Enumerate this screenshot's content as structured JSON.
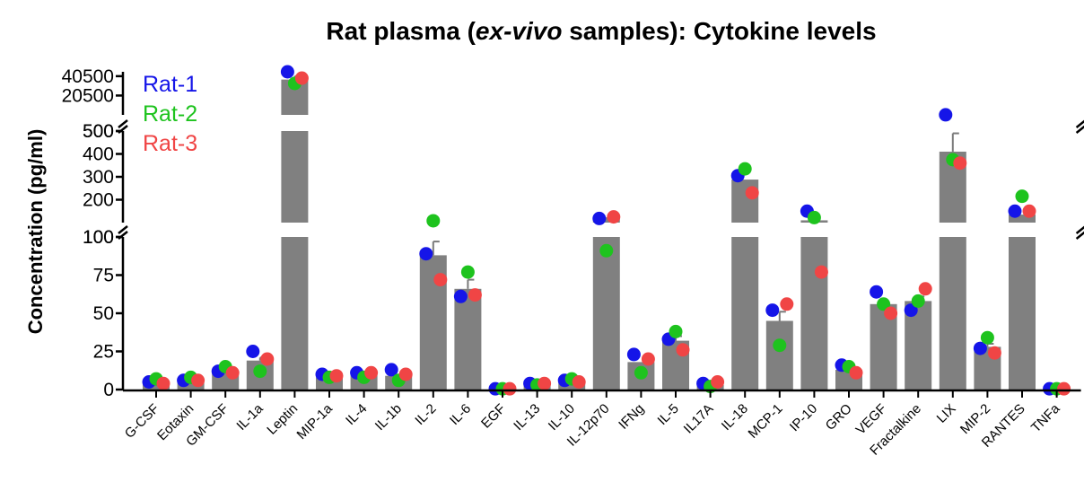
{
  "chart_data": {
    "type": "bar",
    "title_parts": [
      "Rat plasma (",
      "ex-vivo",
      " samples): Cytokine levels"
    ],
    "ylabel": "Concentration (pg/ml)",
    "xlabel": "",
    "categories": [
      "G-CSF",
      "Eotaxin",
      "GM-CSF",
      "IL-1a",
      "Leptin",
      "MIP-1a",
      "IL-4",
      "IL-1b",
      "IL-2",
      "IL-6",
      "EGF",
      "IL-13",
      "IL-10",
      "IL-12p70",
      "IFNg",
      "IL-5",
      "IL17A",
      "IL-18",
      "MCP-1",
      "IP-10",
      "GRO",
      "VEGF",
      "Fractalkine",
      "LIX",
      "MIP-2",
      "RANTES",
      "TNFa"
    ],
    "means": [
      5,
      6,
      11,
      19,
      37000,
      8,
      10,
      9,
      88,
      66,
      0.5,
      3,
      5,
      123,
      18,
      32,
      3,
      288,
      45,
      110,
      13,
      56,
      58,
      410,
      28,
      135,
      0.5
    ],
    "errors": [
      0,
      0,
      1,
      2,
      3500,
      0,
      0,
      0,
      9,
      6,
      0,
      0,
      0,
      0,
      0,
      3,
      0,
      0,
      6,
      0,
      0,
      0,
      3,
      80,
      2,
      0,
      0
    ],
    "series": [
      {
        "name": "Rat-1",
        "color": "#1515e8",
        "values": [
          5,
          6,
          12,
          25,
          48000,
          10,
          11,
          13,
          89,
          61,
          0.5,
          4,
          6,
          118,
          23,
          33,
          4,
          305,
          52,
          150,
          16,
          64,
          52,
          570,
          27,
          150,
          0.5
        ]
      },
      {
        "name": "Rat-2",
        "color": "#1ec31e",
        "values": [
          7,
          8,
          15,
          12,
          33000,
          8,
          8,
          6,
          108,
          77,
          0.5,
          3,
          7,
          91,
          11,
          38,
          2,
          335,
          29,
          122,
          15,
          56,
          58,
          375,
          34,
          215,
          0.5
        ]
      },
      {
        "name": "Rat-3",
        "color": "#f04545",
        "values": [
          4,
          6,
          11,
          20,
          38500,
          9,
          11,
          10,
          72,
          62,
          0.5,
          4,
          5,
          125,
          20,
          26,
          5,
          230,
          56,
          77,
          11,
          50,
          66,
          360,
          24,
          150,
          0.5
        ]
      }
    ],
    "segments": [
      {
        "range": [
          0,
          100
        ],
        "ticks": [
          0,
          25,
          50,
          75,
          100
        ]
      },
      {
        "range": [
          100,
          500
        ],
        "ticks": [
          100,
          200,
          300,
          400,
          500
        ]
      },
      {
        "range": [
          500,
          45000
        ],
        "ticks": [
          500,
          20500,
          40500
        ]
      }
    ],
    "tick_labels": {
      "0": "0",
      "25": "25",
      "50": "50",
      "75": "75",
      "100": "100",
      "200": "200",
      "300": "300",
      "400": "400",
      "500": "500",
      "20500": "20500",
      "40500": "40500"
    },
    "bar_color": "#808080",
    "legend_position": "top-left"
  }
}
